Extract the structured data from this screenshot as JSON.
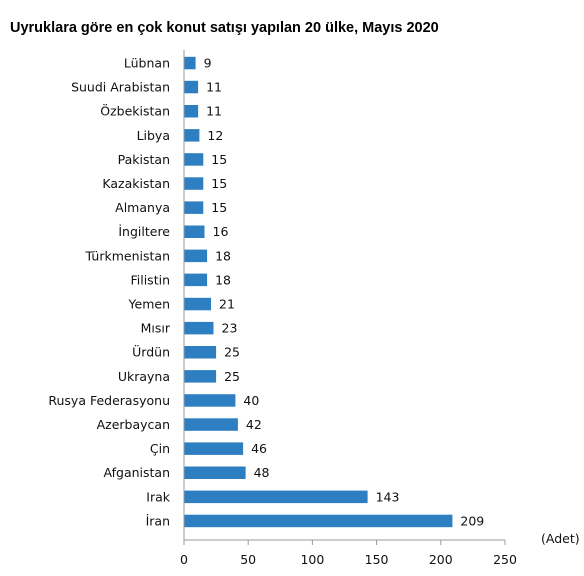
{
  "chart_data": {
    "type": "bar",
    "orientation": "horizontal",
    "title": "Uyruklara göre en çok konut satışı yapılan 20 ülke, Mayıs 2020",
    "unit_label": "(Adet)",
    "categories": [
      "Lübnan",
      "Suudi Arabistan",
      "Özbekistan",
      "Libya",
      "Pakistan",
      "Kazakistan",
      "Almanya",
      "İngiltere",
      "Türkmenistan",
      "Filistin",
      "Yemen",
      "Mısır",
      "Ürdün",
      "Ukrayna",
      "Rusya Federasyonu",
      "Azerbaycan",
      "Çin",
      "Afganistan",
      "Irak",
      "İran"
    ],
    "values": [
      9,
      11,
      11,
      12,
      15,
      15,
      15,
      16,
      18,
      18,
      21,
      23,
      25,
      25,
      40,
      42,
      46,
      48,
      143,
      209
    ],
    "xlim": [
      0,
      250
    ],
    "xticks": [
      "0",
      "50",
      "100",
      "150",
      "200",
      "250"
    ],
    "bar_color": "#2E7FC2",
    "grid": false,
    "legend": "none"
  }
}
